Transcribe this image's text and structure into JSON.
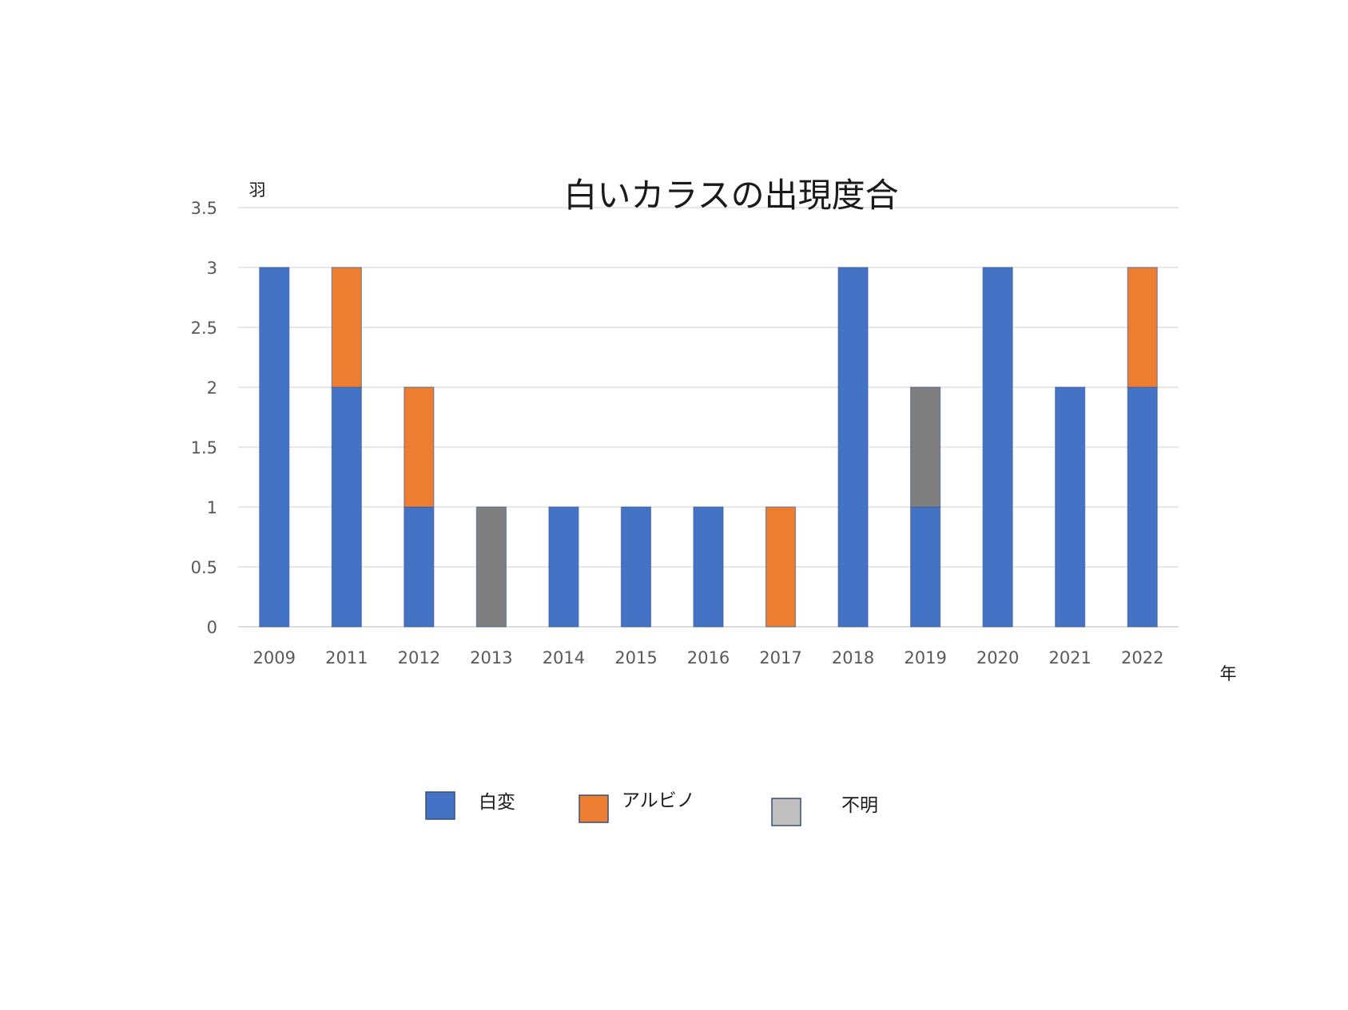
{
  "chart_data": {
    "type": "bar",
    "stacked": true,
    "title": "白いカラスの出現度合",
    "ylabel": "羽",
    "xlabel": "年",
    "ylim": [
      0,
      3.5
    ],
    "yticks": [
      "0",
      "0.5",
      "1",
      "1.5",
      "2",
      "2.5",
      "3",
      "3.5"
    ],
    "categories": [
      "2009",
      "2011",
      "2012",
      "2013",
      "2014",
      "2015",
      "2016",
      "2017",
      "2018",
      "2019",
      "2020",
      "2021",
      "2022"
    ],
    "series": [
      {
        "name": "白変",
        "color": "#4472C4",
        "values": [
          3,
          2,
          1,
          0,
          1,
          1,
          1,
          0,
          3,
          1,
          3,
          2,
          2
        ]
      },
      {
        "name": "アルビノ",
        "color": "#ED7D31",
        "values": [
          0,
          1,
          1,
          0,
          0,
          0,
          0,
          1,
          0,
          0,
          0,
          0,
          1
        ]
      },
      {
        "name": "不明",
        "color": "#7F7F7F",
        "legend_color": "#C0C0C0",
        "values": [
          0,
          0,
          0,
          1,
          0,
          0,
          0,
          0,
          0,
          1,
          0,
          0,
          0
        ]
      }
    ],
    "grid": true,
    "legend_position": "bottom"
  }
}
